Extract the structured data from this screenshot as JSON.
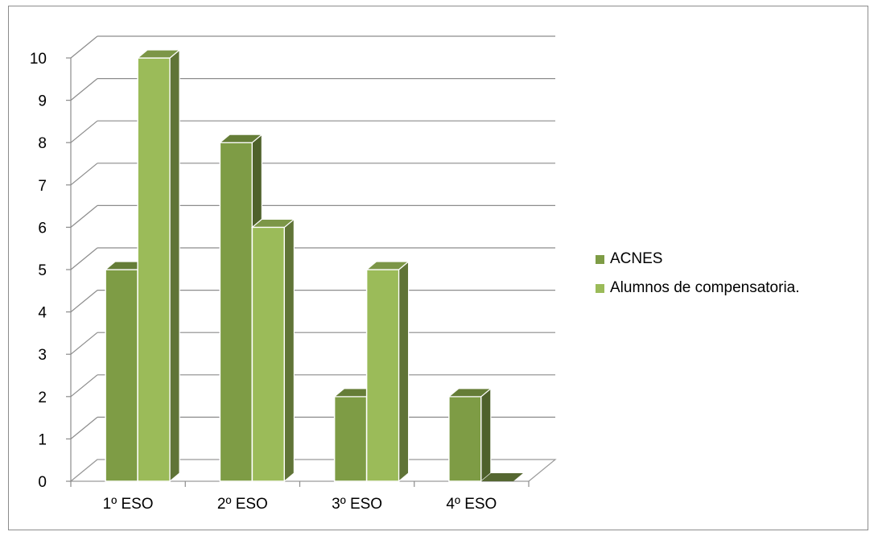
{
  "chart_data": {
    "type": "bar",
    "categories": [
      "1º ESO",
      "2º ESO",
      "3º ESO",
      "4º ESO"
    ],
    "series": [
      {
        "name": "ACNES",
        "values": [
          5,
          8,
          2,
          2
        ],
        "color": "#7e9c45"
      },
      {
        "name": "Alumnos de compensatoria.",
        "values": [
          10,
          6,
          5,
          0
        ],
        "color": "#9bbb59"
      }
    ],
    "ylim": [
      0,
      10
    ],
    "yticks": [
      "0",
      "1",
      "2",
      "3",
      "4",
      "5",
      "6",
      "7",
      "8",
      "9",
      "10"
    ],
    "grid": true,
    "legend": "right",
    "three_d": true
  }
}
